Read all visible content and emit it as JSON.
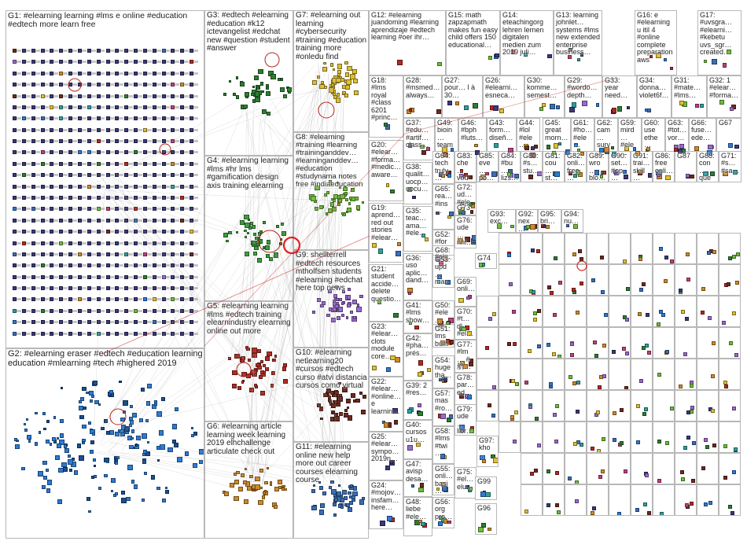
{
  "colors": {
    "G1": "#3a3a7a",
    "G2": "#2d7bd3",
    "G3": "#2e7d32",
    "G4": "#3a9d3a",
    "G5": "#b22a22",
    "G6": "#d08a2a",
    "G7": "#e0c030",
    "G8": "#6fbf3a",
    "G9": "#9a6ad0",
    "G10": "#6d2a20",
    "G11": "#3b6fb6",
    "misc": "#888888",
    "edge": "#c8c8c8",
    "highlight": "#e02020"
  },
  "groups": [
    {
      "id": "G1",
      "label": "G1: #elearning learning #lms e online #education #edtech more learn free"
    },
    {
      "id": "G2",
      "label": "G2: #elearning eraser #edtech #education learning education #mlearning #tech #highered 2019"
    },
    {
      "id": "G3",
      "label": "G3: #edtech #elearning #education #k12 ictevangelist #edchat new #question #student #answer"
    },
    {
      "id": "G4",
      "label": "G4: #elearning learning #lms #hr lms #gamification design axis training elearning"
    },
    {
      "id": "G5",
      "label": "G5: #elearning learning #lms #edtech training elearnindustry elearning online out more"
    },
    {
      "id": "G6",
      "label": "G6: #elearning article learning week learning 2019 elhchallenge articulate check out"
    },
    {
      "id": "G7",
      "label": "G7: #elearning out learning #cybersecurity #training #education training more #onledu find"
    },
    {
      "id": "G8",
      "label": "G8: #elearning #training #learning #traininganddev… #learninganddev… #education #studynama notes free #indiaeducation"
    },
    {
      "id": "G9",
      "label": "G9: shellterrell #edtech resources mtholfsen students #elearning #edchat here top news"
    },
    {
      "id": "G10",
      "label": "G10: #elearning netlearning20 #cursos #edtech curso #atvi distancia cursos como virtual"
    },
    {
      "id": "G11",
      "label": "G11: #elearning online new help more out career courses elearning course"
    },
    {
      "id": "G12",
      "label": "G12: #elearning juandoming #learning aprendizaje #edtech learning #oer ihr…"
    },
    {
      "id": "G15",
      "label": "G15: math zapzapmath makes fun easy child offers 150 educational…"
    },
    {
      "id": "G14",
      "label": "G14: eteachingorg lehren lernen digitalen medien zum 2019 juli…"
    },
    {
      "id": "G13",
      "label": "G13: learning johnlet… systems #lms new extended enterprise business…"
    },
    {
      "id": "G16",
      "label": "G16: e #elearning u itil 4 #online complete preparation aws"
    },
    {
      "id": "G17",
      "label": "G17: #uvsgra… #elearni… #kebetu uvs_sgr… created…"
    },
    {
      "id": "G18",
      "label": "G18: #lms royal #class 6201 #princ…"
    },
    {
      "id": "G20",
      "label": "G20: #elear… #forma… #medic… aware…"
    },
    {
      "id": "G19",
      "label": "G19: aprend… red out stories #elear…"
    },
    {
      "id": "G21",
      "label": "G21: student accide… delete questio…"
    },
    {
      "id": "G23",
      "label": "G23: #elear… clots module core…"
    },
    {
      "id": "G22",
      "label": "G22: #elear… #online… e learnin…"
    },
    {
      "id": "G25",
      "label": "G25: #elear… sympo… 2019n…"
    },
    {
      "id": "G24",
      "label": "G24: #mojov… insfam… here…"
    },
    {
      "id": "G28",
      "label": "G28: #msmed… always…"
    },
    {
      "id": "G27",
      "label": "G27: pour… l à 30…"
    },
    {
      "id": "G26",
      "label": "G26: #elearni… esneca…"
    },
    {
      "id": "G30",
      "label": "G30: komme… semest…"
    },
    {
      "id": "G29",
      "label": "G29: #wordo… depth…"
    },
    {
      "id": "G33",
      "label": "G33: year need…"
    },
    {
      "id": "G34",
      "label": "G34: donna… violet6f…"
    },
    {
      "id": "G31",
      "label": "G31: #mate… #lms…"
    },
    {
      "id": "G32",
      "label": "G32: 1 #elear… #forma…"
    },
    {
      "id": "G37",
      "label": "G37: #edu… #artif… class…"
    },
    {
      "id": "G49",
      "label": "G49: bioin… team…"
    },
    {
      "id": "G46",
      "label": "G46: #bph #luts…"
    },
    {
      "id": "G43",
      "label": "G43: form… diseñ…"
    },
    {
      "id": "G44",
      "label": "G44: #lol #ele…"
    },
    {
      "id": "G45",
      "label": "G45: great morn…"
    },
    {
      "id": "G61",
      "label": "G61: #ho… #ele…"
    },
    {
      "id": "G62",
      "label": "G62: cam… surv…"
    },
    {
      "id": "G59",
      "label": "G59: mird… #ele…"
    },
    {
      "id": "G60",
      "label": "G60: use ethe…"
    },
    {
      "id": "G63",
      "label": "G63: #tot… vor…"
    },
    {
      "id": "G66",
      "label": "G66: fuse… ede…"
    },
    {
      "id": "G67",
      "label": "G67"
    },
    {
      "id": "G38",
      "label": "G38: qualit… uocp… uocu…"
    },
    {
      "id": "G35",
      "label": "G35: teac… ama… #ele…"
    },
    {
      "id": "G36",
      "label": "G36: uso aplic… dand…"
    },
    {
      "id": "G41",
      "label": "G41: #lms show…"
    },
    {
      "id": "G42",
      "label": "G42: #pha… prés…"
    },
    {
      "id": "G39",
      "label": "G39: 2 #res…"
    },
    {
      "id": "G40",
      "label": "G40: cursos u1u…"
    },
    {
      "id": "G47",
      "label": "G47: avisp desa…"
    },
    {
      "id": "G48",
      "label": "G48: liebe #ele…"
    },
    {
      "id": "G64",
      "label": "G64: tech truly…"
    },
    {
      "id": "G65",
      "label": "G65: rea… #ins…"
    },
    {
      "id": "G52",
      "label": "G52: #for… #ele…"
    },
    {
      "id": "G68",
      "label": "G68: #pr…"
    },
    {
      "id": "G53",
      "label": "G53: upd… mar…"
    },
    {
      "id": "G50",
      "label": "G50: #ele… onli…"
    },
    {
      "id": "G51",
      "label": "G51: lms built…"
    },
    {
      "id": "G54",
      "label": "G54: huge tha…"
    },
    {
      "id": "G57",
      "label": "G57: mas #ro…"
    },
    {
      "id": "G58",
      "label": "G58: #lms #twi…"
    },
    {
      "id": "G55",
      "label": "G55: onli… basi…"
    },
    {
      "id": "G56",
      "label": "G56: org pro…"
    },
    {
      "id": "G83",
      "label": "G83: che… vou…"
    },
    {
      "id": "G85",
      "label": "G85: eve… po…"
    },
    {
      "id": "G84",
      "label": "G84: #bu… lizs…"
    },
    {
      "id": "G80",
      "label": "G80: #s… stu…"
    },
    {
      "id": "G81",
      "label": "G81: cou… st…"
    },
    {
      "id": "G82",
      "label": "G82: onli… free…"
    },
    {
      "id": "G89",
      "label": "G89: wro… blo…"
    },
    {
      "id": "G90",
      "label": "G90: set… #op…"
    },
    {
      "id": "G91",
      "label": "G91: trai… skill…"
    },
    {
      "id": "G86",
      "label": "G86: free onli…"
    },
    {
      "id": "G87",
      "label": "G87"
    },
    {
      "id": "G88",
      "label": "G88: con… que…"
    },
    {
      "id": "G71",
      "label": "G71: #s… #sa…"
    },
    {
      "id": "G72",
      "label": "G72: ud… #ele…"
    },
    {
      "id": "G76",
      "label": "G76: ude… nhi…"
    },
    {
      "id": "G73",
      "label": "G73"
    },
    {
      "id": "G74",
      "label": "G74"
    },
    {
      "id": "G69",
      "label": "G69: onli…"
    },
    {
      "id": "G70",
      "label": "G70: #t… dl #el…"
    },
    {
      "id": "G77",
      "label": "G77: #lm… #航…"
    },
    {
      "id": "G78",
      "label": "G78: par… ed…"
    },
    {
      "id": "G79",
      "label": "G79: ude… libr…"
    },
    {
      "id": "G97",
      "label": "G97: kho…"
    },
    {
      "id": "G75",
      "label": "G75: #el… elu…"
    },
    {
      "id": "G99",
      "label": "G99"
    },
    {
      "id": "G96",
      "label": "G96"
    },
    {
      "id": "G93",
      "label": "G93: exc…"
    },
    {
      "id": "G92",
      "label": "G92: nex…"
    },
    {
      "id": "G95",
      "label": "G95: bri…"
    },
    {
      "id": "G94",
      "label": "G94: nu…"
    }
  ]
}
